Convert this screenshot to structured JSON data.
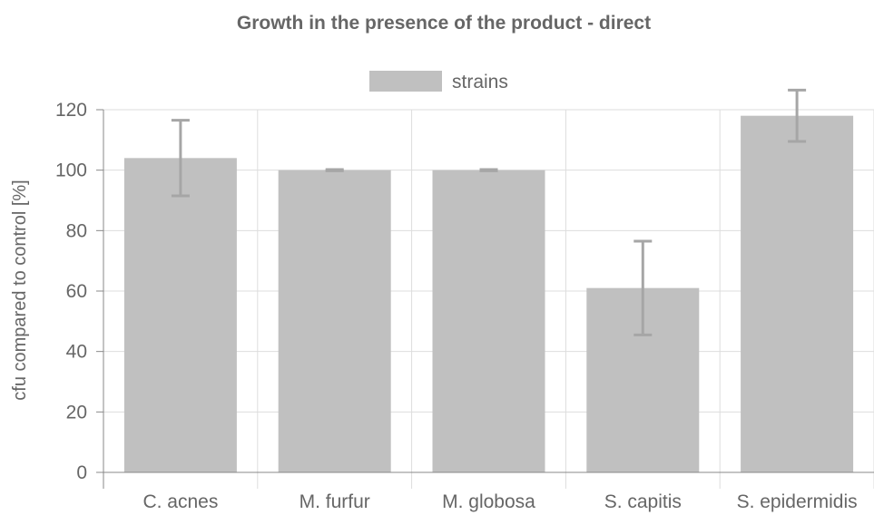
{
  "chart_data": {
    "type": "bar",
    "title": "Growth in the presence of the product - direct",
    "ylabel": "cfu compared to control [%]",
    "xlabel": "",
    "categories": [
      "C. acnes",
      "M. furfur",
      "M. globosa",
      "S. capitis",
      "S. epidermidis"
    ],
    "series": [
      {
        "name": "strains",
        "values": [
          104,
          100,
          100,
          61,
          118
        ],
        "error": [
          12.5,
          0.2,
          0.2,
          15.5,
          8.5
        ]
      }
    ],
    "ylim": [
      0,
      120
    ],
    "yticks": [
      0,
      20,
      40,
      60,
      80,
      100,
      120
    ],
    "ytick_labels": [
      "0",
      "20",
      "40",
      "60",
      "80",
      "100",
      "120"
    ],
    "grid": true,
    "legend_position": "top-center",
    "colors": {
      "bar": "#c0c0c0",
      "error_bar": "#a6a6a6",
      "grid": "#dddddd",
      "axis": "#888888",
      "text": "#666666"
    }
  }
}
